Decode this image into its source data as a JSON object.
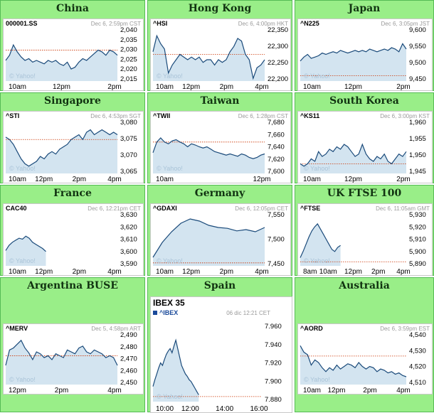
{
  "watermark": "© Yahoo!",
  "colors": {
    "line": "#1a4a7a",
    "area": "#d3e4f0",
    "reference": "#cc3300",
    "cell_bg": "#99ee88",
    "cell_border": "#55bb55"
  },
  "panels": [
    {
      "title": "China",
      "symbol": "000001.SS",
      "timestamp": "Dec 6, 2:59pm CST",
      "chart_data": {
        "type": "area",
        "ylim": [
          2012,
          2043
        ],
        "yticks": [
          "2,040",
          "2,035",
          "2,030",
          "2,025",
          "2,020",
          "2,015"
        ],
        "xlabels": [
          "10am",
          "12pm",
          "2pm"
        ],
        "reference": 2030,
        "values": [
          2024,
          2027,
          2033,
          2029,
          2026,
          2024,
          2025,
          2023,
          2024,
          2023,
          2022,
          2024,
          2023,
          2024,
          2022,
          2021,
          2023,
          2019,
          2020,
          2023,
          2025,
          2024,
          2026,
          2028,
          2030,
          2029,
          2027,
          2030,
          2029,
          2027
        ]
      }
    },
    {
      "title": "Hong Kong",
      "symbol": "^HSI",
      "timestamp": "Dec 6, 4:00pm HKT",
      "chart_data": {
        "type": "area",
        "ylim": [
          22170,
          22370
        ],
        "yticks": [
          "22,350",
          "22,300",
          "22,250",
          "22,200"
        ],
        "xlabels": [
          "10am",
          "12pm",
          "2pm",
          "4pm"
        ],
        "reference": 22270,
        "values": [
          22280,
          22340,
          22310,
          22290,
          22200,
          22230,
          22250,
          22270,
          22260,
          22250,
          22260,
          22250,
          22260,
          22240,
          22250,
          22250,
          22230,
          22250,
          22240,
          22250,
          22280,
          22300,
          22330,
          22320,
          22270,
          22250,
          22180,
          22220,
          22230,
          22250
        ]
      }
    },
    {
      "title": "Japan",
      "symbol": "^N225",
      "timestamp": "Dec 6, 3:05pm JST",
      "chart_data": {
        "type": "area",
        "ylim": [
          9420,
          9620
        ],
        "yticks": [
          "9,600",
          "9,550",
          "9,500",
          "9,450"
        ],
        "xlabels": [
          "10am",
          "12pm",
          "2pm"
        ],
        "reference": 9440,
        "values": [
          9495,
          9510,
          9520,
          9505,
          9510,
          9515,
          9525,
          9520,
          9525,
          9530,
          9525,
          9535,
          9530,
          9525,
          9530,
          9535,
          9530,
          9535,
          9530,
          9540,
          9535,
          9530,
          9535,
          9540,
          9535,
          9545,
          9540,
          9530,
          9560,
          9540
        ]
      }
    },
    {
      "title": "Singapore",
      "symbol": "^STI",
      "timestamp": "Dec 6, 4:53pm SGT",
      "chart_data": {
        "type": "area",
        "ylim": [
          3062,
          3084
        ],
        "yticks": [
          "3,080",
          "3,075",
          "3,070",
          "3,065"
        ],
        "xlabels": [
          "10am",
          "12pm",
          "2pm",
          "4pm"
        ],
        "reference": 3076,
        "values": [
          3077,
          3076,
          3074,
          3071,
          3068,
          3066,
          3065,
          3066,
          3067,
          3069,
          3068,
          3070,
          3071,
          3070,
          3072,
          3073,
          3074,
          3076,
          3077,
          3078,
          3076,
          3079,
          3080,
          3078,
          3079,
          3080,
          3079,
          3078,
          3079,
          3078
        ]
      }
    },
    {
      "title": "Taiwan",
      "symbol": "^TWII",
      "timestamp": "Dec 6, 1:28pm CST",
      "chart_data": {
        "type": "area",
        "ylim": [
          7595,
          7685
        ],
        "yticks": [
          "7,680",
          "7,660",
          "7,640",
          "7,620",
          "7,600"
        ],
        "xlabels": [
          "10am",
          "12pm"
        ],
        "reference": 7648,
        "values": [
          7630,
          7648,
          7655,
          7648,
          7645,
          7650,
          7652,
          7648,
          7645,
          7640,
          7645,
          7643,
          7640,
          7638,
          7640,
          7636,
          7632,
          7630,
          7628,
          7626,
          7628,
          7626,
          7624,
          7628,
          7626,
          7622,
          7620,
          7622,
          7626,
          7628
        ]
      }
    },
    {
      "title": "South Korea",
      "symbol": "^KS11",
      "timestamp": "Dec 6, 3:00pm KST",
      "chart_data": {
        "type": "area",
        "ylim": [
          1942,
          1964
        ],
        "yticks": [
          "1,960",
          "1,955",
          "1,950",
          "1,945"
        ],
        "xlabels": [
          "10am",
          "12pm",
          "2pm"
        ],
        "reference": 1946,
        "values": [
          1946,
          1945,
          1946,
          1948,
          1947,
          1951,
          1949,
          1950,
          1952,
          1951,
          1953,
          1952,
          1954,
          1953,
          1951,
          1949,
          1950,
          1954,
          1950,
          1948,
          1947,
          1949,
          1948,
          1950,
          1947,
          1946,
          1948,
          1950,
          1949,
          1951
        ]
      }
    },
    {
      "title": "France",
      "symbol": "CAC40",
      "timestamp": "Dec 6, 12:21pm CET",
      "chart_data": {
        "type": "area",
        "ylim": [
          3585,
          3637
        ],
        "yticks": [
          "3,630",
          "3,620",
          "3,610",
          "3,600",
          "3,590"
        ],
        "xlabels": [
          "10am",
          "12pm",
          "2pm",
          "4pm"
        ],
        "reference": null,
        "fill_fraction": 0.36,
        "values": [
          3600,
          3605,
          3608,
          3610,
          3612,
          3611,
          3614,
          3612,
          3608,
          3606,
          3604,
          3602,
          3599
        ]
      }
    },
    {
      "title": "Germany",
      "symbol": "^GDAXI",
      "timestamp": "Dec 6, 12:05pm CET",
      "chart_data": {
        "type": "area",
        "ylim": [
          7440,
          7565
        ],
        "yticks": [
          "7,550",
          "7,500",
          "7,450"
        ],
        "xlabels": [
          "10am",
          "12pm",
          "2pm",
          "4pm"
        ],
        "reference": 7447,
        "values": [
          7460,
          7495,
          7520,
          7540,
          7550,
          7545,
          7535,
          7530,
          7528,
          7522,
          7525,
          7520,
          7530
        ]
      }
    },
    {
      "title": "UK FTSE 100",
      "symbol": "^FTSE",
      "timestamp": "Dec 6, 11:05am GMT",
      "chart_data": {
        "type": "area",
        "ylim": [
          5884,
          5936
        ],
        "yticks": [
          "5,930",
          "5,920",
          "5,910",
          "5,900",
          "5,890"
        ],
        "xlabels": [
          "8am",
          "10am",
          "12pm",
          "2pm",
          "4pm"
        ],
        "reference": 5888,
        "fill_fraction": 0.38,
        "values": [
          5892,
          5898,
          5905,
          5912,
          5918,
          5922,
          5925,
          5920,
          5915,
          5910,
          5905,
          5900,
          5898,
          5902,
          5904
        ]
      }
    },
    {
      "title": "Argentina BUSE",
      "symbol": "^MERV",
      "timestamp": "Dec 5, 4:58pm ART",
      "chart_data": {
        "type": "area",
        "ylim": [
          2442,
          2496
        ],
        "yticks": [
          "2,490",
          "2,480",
          "2,470",
          "2,460",
          "2,450"
        ],
        "xlabels": [
          "12pm",
          "2pm",
          "4pm"
        ],
        "reference": 2472,
        "values": [
          2462,
          2478,
          2480,
          2484,
          2488,
          2480,
          2475,
          2468,
          2476,
          2474,
          2470,
          2472,
          2468,
          2474,
          2472,
          2470,
          2478,
          2476,
          2474,
          2480,
          2482,
          2476,
          2474,
          2478,
          2476,
          2474,
          2470,
          2472,
          2470,
          2462
        ]
      }
    },
    {
      "title": "Spain",
      "header": "IBEX 35",
      "symbol": "^IBEX",
      "timestamp": "06 dic 12:21 CET",
      "chart_data": {
        "type": "area",
        "ylim": [
          7872,
          7964
        ],
        "yticks": [
          "7.960",
          "7.940",
          "7.920",
          "7.900",
          "7.880"
        ],
        "xlabels": [
          "10:00",
          "12:00",
          "14:00",
          "16:00"
        ],
        "reference": 7878,
        "fill_fraction": 0.42,
        "values": [
          7890,
          7898,
          7905,
          7912,
          7918,
          7915,
          7922,
          7928,
          7932,
          7935,
          7930,
          7938,
          7945,
          7935,
          7925,
          7915,
          7910,
          7905,
          7902,
          7898,
          7896,
          7892,
          7888,
          7884,
          7880
        ]
      }
    },
    {
      "title": "Australia",
      "symbol": "^AORD",
      "timestamp": "Dec 6, 3:59pm EST",
      "chart_data": {
        "type": "area",
        "ylim": [
          4505,
          4545
        ],
        "yticks": [
          "4,540",
          "4,530",
          "4,520",
          "4,510"
        ],
        "xlabels": [
          "10am",
          "12pm",
          "2pm",
          "4pm"
        ],
        "reference": 4527,
        "values": [
          4535,
          4530,
          4528,
          4520,
          4524,
          4522,
          4518,
          4515,
          4518,
          4516,
          4520,
          4517,
          4519,
          4521,
          4520,
          4518,
          4522,
          4519,
          4517,
          4519,
          4518,
          4515,
          4517,
          4516,
          4514,
          4515,
          4513,
          4514,
          4512,
          4511
        ]
      }
    }
  ]
}
